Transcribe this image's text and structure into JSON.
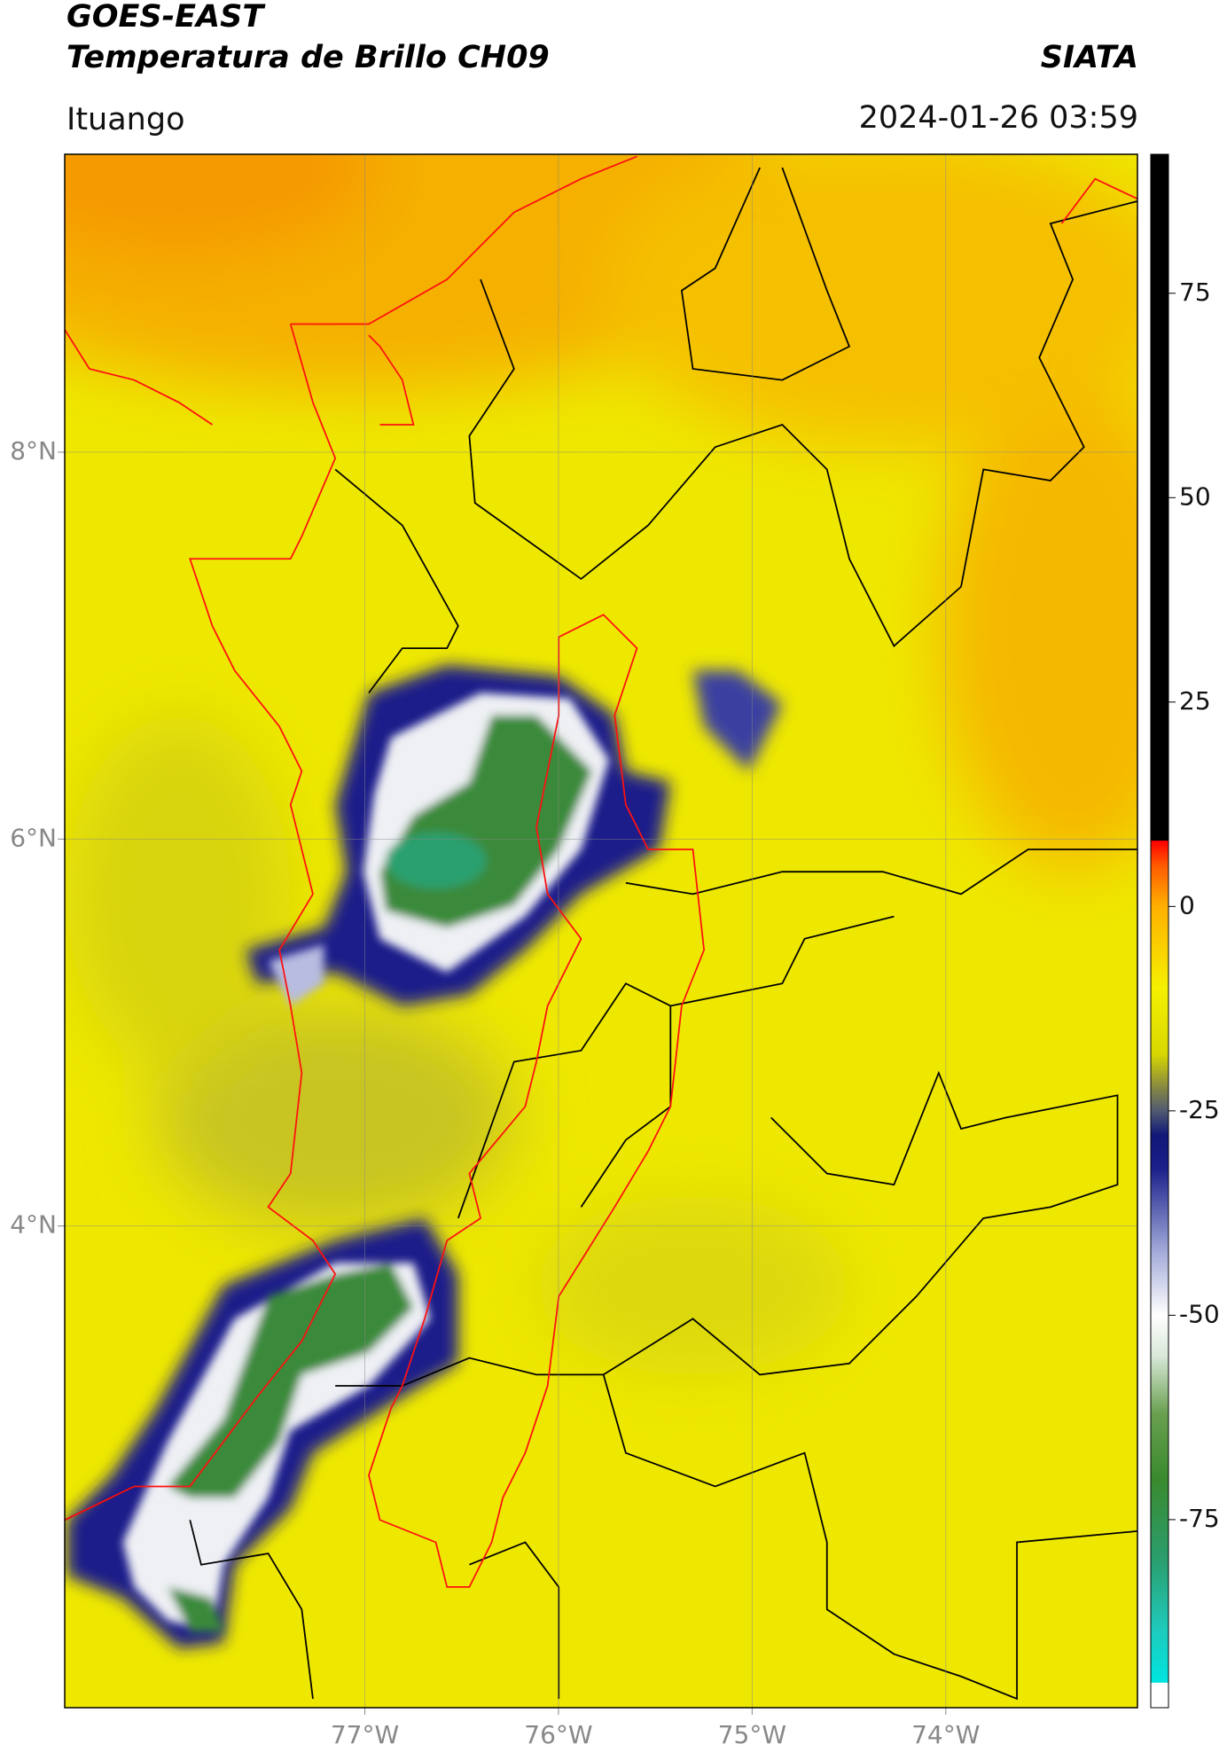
{
  "header": {
    "title": "GOES-EAST",
    "subtitle": "Temperatura de Brillo CH09",
    "source": "SIATA",
    "location": "Ituango",
    "datetime": "2024-01-26 03:59"
  },
  "map": {
    "xlim": [
      -78.55,
      -73.01
    ],
    "ylim": [
      1.51,
      9.54
    ],
    "xticks": [
      {
        "value": -77,
        "label": "77°W"
      },
      {
        "value": -76,
        "label": "76°W"
      },
      {
        "value": -75,
        "label": "75°W"
      },
      {
        "value": -74,
        "label": "74°W"
      }
    ],
    "yticks": [
      {
        "value": 8,
        "label": "8°N"
      },
      {
        "value": 6,
        "label": "6°N"
      },
      {
        "value": 4,
        "label": "4°N"
      }
    ],
    "grid": true
  },
  "colorbar": {
    "lim": [
      -98,
      92
    ],
    "ticks": [
      -75,
      -50,
      -25,
      0,
      25,
      50,
      75
    ],
    "colormap": [
      [
        -98,
        "#ffffff"
      ],
      [
        -95,
        "#ffffff"
      ],
      [
        -94.9,
        "#00e5e0"
      ],
      [
        -88,
        "#20c8b8"
      ],
      [
        -80,
        "#2a9e6e"
      ],
      [
        -70,
        "#3a8a2e"
      ],
      [
        -62,
        "#6aa050"
      ],
      [
        -55,
        "#d8e8d8"
      ],
      [
        -50,
        "#ffffff"
      ],
      [
        -42,
        "#a0a8d8"
      ],
      [
        -32,
        "#1a1f8a"
      ],
      [
        -28,
        "#101878"
      ],
      [
        -25,
        "#505a70"
      ],
      [
        -22,
        "#8a8a40"
      ],
      [
        -18,
        "#d8d800"
      ],
      [
        -10,
        "#f5f000"
      ],
      [
        0,
        "#ffb000"
      ],
      [
        5,
        "#ff5a00"
      ],
      [
        8,
        "#ff0000"
      ],
      [
        8.1,
        "#000000"
      ],
      [
        92,
        "#000000"
      ]
    ]
  }
}
